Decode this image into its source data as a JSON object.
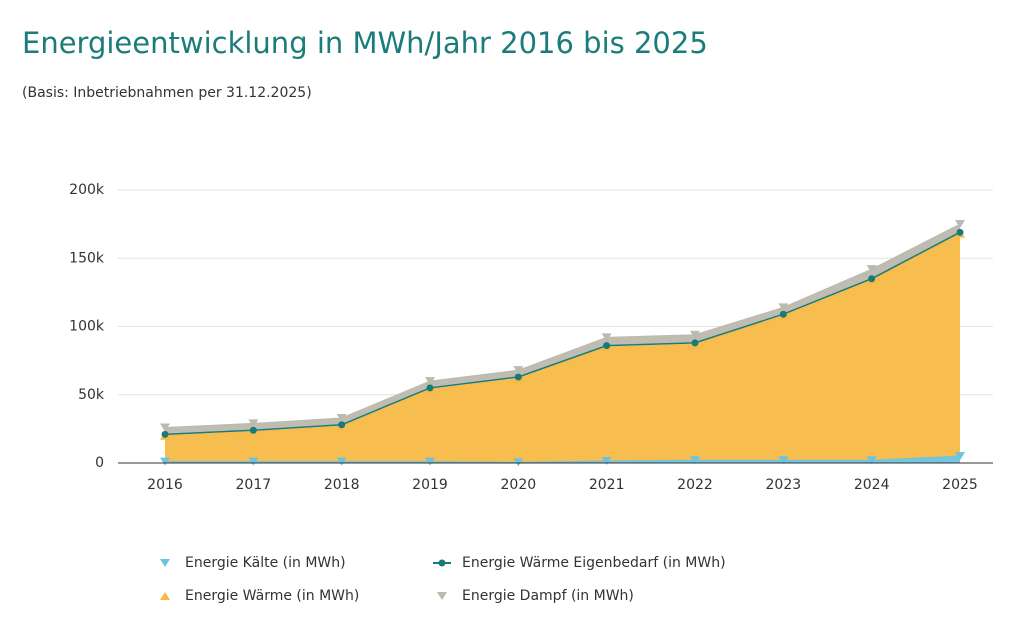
{
  "chart_data": {
    "type": "stacked-area",
    "title": "Energieentwicklung in MWh/Jahr 2016 bis 2025",
    "subtitle": "(Basis: Inbetriebnahmen per 31.12.2025)",
    "categories": [
      "2016",
      "2017",
      "2018",
      "2019",
      "2020",
      "2021",
      "2022",
      "2023",
      "2024",
      "2025"
    ],
    "series": [
      {
        "name": "Energie Kälte (in MWh)",
        "color": "#6cc3e0",
        "marker": "down",
        "values": [
          1000,
          1000,
          1000,
          1000,
          500,
          1500,
          2000,
          2000,
          2000,
          5000
        ]
      },
      {
        "name": "Energie Wärme (in MWh)",
        "color": "#f7b944",
        "marker": "up",
        "values": [
          19000,
          22000,
          26000,
          53000,
          61500,
          83500,
          85000,
          106000,
          132000,
          163000
        ]
      },
      {
        "name": "Energie Wärme Eigenbedarf (in MWh)",
        "color": "#1a7a78",
        "marker": "dot",
        "values": [
          1000,
          1000,
          1000,
          1000,
          1000,
          1000,
          1000,
          1000,
          1000,
          1000
        ]
      },
      {
        "name": "Energie Dampf (in MWh)",
        "color": "#bcb9ad",
        "marker": "down",
        "values": [
          5000,
          5000,
          5000,
          5000,
          5000,
          6000,
          6000,
          5000,
          7000,
          6000
        ]
      }
    ],
    "ylim": [
      0,
      200000
    ],
    "yticks": [
      0,
      {
        "value": 50000,
        "label": "50k"
      },
      {
        "value": 100000,
        "label": "100k"
      },
      {
        "value": 150000,
        "label": "150k"
      },
      {
        "value": 200000,
        "label": "200k"
      }
    ],
    "grid": true
  }
}
